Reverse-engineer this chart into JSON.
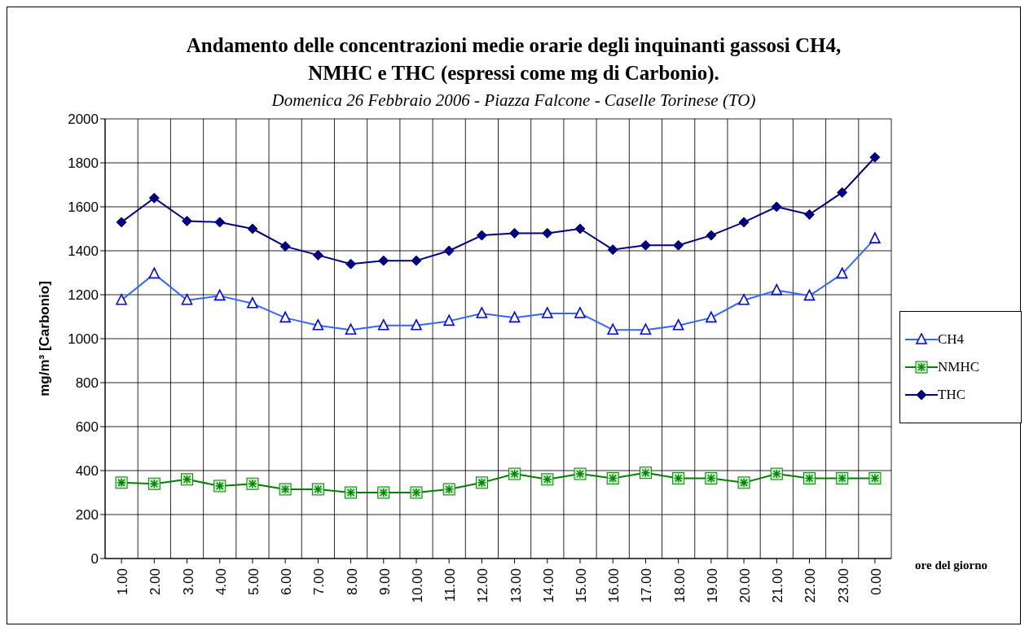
{
  "chart_data": {
    "type": "line",
    "title": "Andamento delle concentrazioni medie orarie degli inquinanti gassosi CH4, NMHC e THC (espressi come mg di Carbonio).",
    "subtitle": "Domenica 26 Febbraio 2006 - Piazza Falcone - Caselle Torinese (TO)",
    "xlabel": "ore del giorno",
    "ylabel": "mg/m³ [Carbonio]",
    "categories": [
      "1.00",
      "2.00",
      "3.00",
      "4.00",
      "5.00",
      "6.00",
      "7.00",
      "8.00",
      "9.00",
      "10.00",
      "11.00",
      "12.00",
      "13.00",
      "14.00",
      "15.00",
      "16.00",
      "17.00",
      "18.00",
      "19.00",
      "20.00",
      "21.00",
      "22.00",
      "23.00",
      "0.00"
    ],
    "series": [
      {
        "name": "CH4",
        "color": "#3366ff",
        "marker": "triangle",
        "values": [
          1175,
          1295,
          1175,
          1195,
          1160,
          1095,
          1060,
          1040,
          1060,
          1060,
          1080,
          1115,
          1095,
          1115,
          1115,
          1040,
          1040,
          1060,
          1095,
          1175,
          1220,
          1195,
          1295,
          1455
        ]
      },
      {
        "name": "NMHC",
        "color": "#008000",
        "marker": "square",
        "values": [
          345,
          340,
          360,
          330,
          340,
          315,
          315,
          300,
          300,
          300,
          315,
          345,
          385,
          360,
          385,
          365,
          390,
          365,
          365,
          345,
          385,
          365,
          365,
          365
        ]
      },
      {
        "name": "THC",
        "color": "#000080",
        "marker": "diamond",
        "values": [
          1530,
          1640,
          1535,
          1530,
          1500,
          1420,
          1380,
          1340,
          1355,
          1355,
          1400,
          1470,
          1480,
          1480,
          1500,
          1405,
          1425,
          1425,
          1470,
          1530,
          1600,
          1565,
          1665,
          1825
        ]
      }
    ],
    "ylim": [
      0,
      2000
    ],
    "yticks": [
      0,
      200,
      400,
      600,
      800,
      1000,
      1200,
      1400,
      1600,
      1800,
      2000
    ],
    "grid": true,
    "legend": "right",
    "line_style": "solid"
  }
}
